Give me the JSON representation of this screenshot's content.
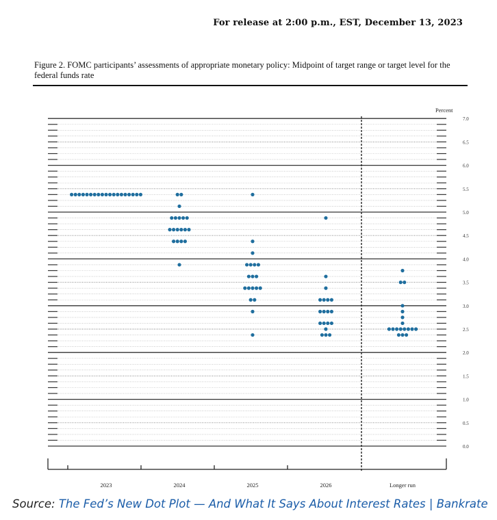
{
  "header": {
    "release_line": "For release at 2:00 p.m., EST, December 13, 2023",
    "figure_title": "Figure 2.  FOMC participants’ assessments of appropriate monetary policy: Midpoint of target range or target level for the federal funds rate"
  },
  "source": {
    "prefix": "Source: ",
    "link_text": "The Fed’s New Dot Plot — And What It Says About Interest Rates | Bankrate"
  },
  "chart_data": {
    "type": "scatter",
    "title": "",
    "ylabel": "Percent",
    "ylim": [
      0.0,
      7.0
    ],
    "yticks": [
      "0.0",
      "0.5",
      "1.0",
      "1.5",
      "2.0",
      "2.5",
      "3.0",
      "3.5",
      "4.0",
      "4.5",
      "5.0",
      "5.5",
      "6.0",
      "6.5",
      "7.0"
    ],
    "categories": [
      "2023",
      "2024",
      "2025",
      "2026",
      "Longer run"
    ],
    "dot_color": "#1f6e9e",
    "separator_before": "Longer run",
    "grid": true,
    "series": [
      {
        "category": "2023",
        "points": [
          {
            "y": 5.375,
            "count": 19
          }
        ]
      },
      {
        "category": "2024",
        "points": [
          {
            "y": 5.375,
            "count": 2
          },
          {
            "y": 5.125,
            "count": 1
          },
          {
            "y": 4.875,
            "count": 5
          },
          {
            "y": 4.625,
            "count": 6
          },
          {
            "y": 4.375,
            "count": 4
          },
          {
            "y": 3.875,
            "count": 1
          }
        ]
      },
      {
        "category": "2025",
        "points": [
          {
            "y": 5.375,
            "count": 1
          },
          {
            "y": 4.375,
            "count": 1
          },
          {
            "y": 4.125,
            "count": 1
          },
          {
            "y": 3.875,
            "count": 4
          },
          {
            "y": 3.625,
            "count": 3
          },
          {
            "y": 3.375,
            "count": 5
          },
          {
            "y": 3.125,
            "count": 2
          },
          {
            "y": 2.875,
            "count": 1
          },
          {
            "y": 2.375,
            "count": 1
          }
        ]
      },
      {
        "category": "2026",
        "points": [
          {
            "y": 4.875,
            "count": 1
          },
          {
            "y": 3.625,
            "count": 1
          },
          {
            "y": 3.375,
            "count": 1
          },
          {
            "y": 3.125,
            "count": 4
          },
          {
            "y": 2.875,
            "count": 4
          },
          {
            "y": 2.625,
            "count": 4
          },
          {
            "y": 2.5,
            "count": 1
          },
          {
            "y": 2.375,
            "count": 3
          }
        ]
      },
      {
        "category": "Longer run",
        "points": [
          {
            "y": 3.75,
            "count": 1
          },
          {
            "y": 3.5,
            "count": 2
          },
          {
            "y": 3.0,
            "count": 1
          },
          {
            "y": 2.875,
            "count": 1
          },
          {
            "y": 2.75,
            "count": 1
          },
          {
            "y": 2.625,
            "count": 1
          },
          {
            "y": 2.5,
            "count": 8
          },
          {
            "y": 2.375,
            "count": 3
          }
        ]
      }
    ]
  }
}
